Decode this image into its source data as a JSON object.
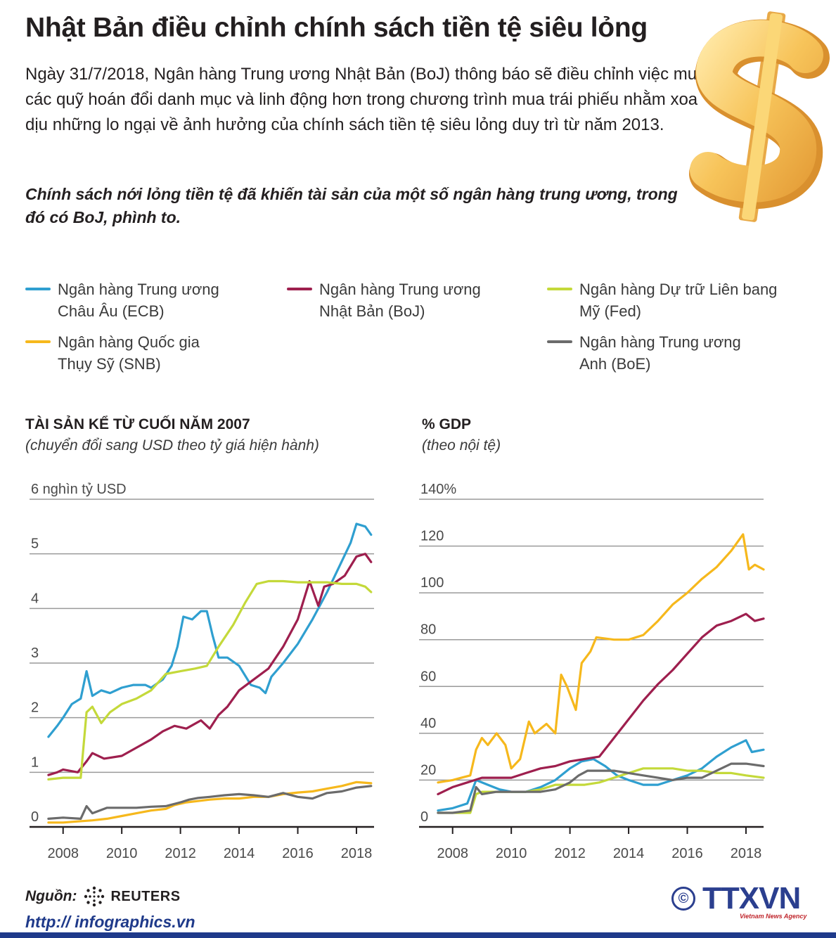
{
  "title": "Nhật Bản điều chỉnh chính sách tiền tệ siêu lỏng",
  "intro": "Ngày 31/7/2018, Ngân hàng Trung ương Nhật Bản (BoJ) thông báo sẽ điều chỉnh việc mua các quỹ hoán đổi danh mục và linh động hơn trong chương trình mua trái phiếu nhằm xoa dịu những lo ngại về ảnh hưởng của chính sách tiền tệ siêu lỏng duy trì từ năm 2013.",
  "lead": "Chính sách nới lỏng tiền tệ đã khiến tài sản của một số ngân hàng trung ương, trong đó có BoJ, phình to.",
  "legend": [
    {
      "line1": "Ngân hàng Trung ương",
      "line2": "Châu Âu (ECB)",
      "color": "#2f9fd0"
    },
    {
      "line1": "Ngân hàng Trung ương",
      "line2": "Nhật Bản (BoJ)",
      "color": "#9e1f4e"
    },
    {
      "line1": "Ngân hàng Dự trữ Liên bang",
      "line2": "Mỹ (Fed)",
      "color": "#c4d93a"
    },
    {
      "line1": "Ngân hàng Quốc gia",
      "line2": "Thụy Sỹ (SNB)",
      "color": "#f6b81c"
    },
    {
      "line1": "Ngân hàng Trung ương",
      "line2": "Anh (BoE)",
      "color": "#6b6b6b"
    }
  ],
  "panels": {
    "left": {
      "title": "TÀI SẢN KỂ TỪ CUỐI NĂM 2007",
      "subtitle": "(chuyển đổi sang USD theo tỷ giá hiện hành)"
    },
    "right": {
      "title": "% GDP",
      "subtitle": "(theo nội tệ)"
    }
  },
  "source": {
    "label": "Nguồn:",
    "name": "REUTERS"
  },
  "site": "http:// infographics.vn",
  "logo": {
    "text": "TTXVN",
    "sub": "Vietnam News Agency",
    "copyright": "©"
  },
  "icons": {
    "dollar": "dollar-sign-3d-icon",
    "reuters": "reuters-dots-icon",
    "copyright": "copyright-icon"
  },
  "chart_data": [
    {
      "type": "line",
      "title": "TÀI SẢN KỂ TỪ CUỐI NĂM 2007",
      "subtitle": "(chuyển đổi sang USD theo tỷ giá hiện hành)",
      "ylabel": "6 nghìn tỷ USD",
      "ylim": [
        0,
        6
      ],
      "xlim": [
        2007.0,
        2018.6
      ],
      "yticks": [
        {
          "v": 0,
          "label": "0"
        },
        {
          "v": 1,
          "label": "1"
        },
        {
          "v": 2,
          "label": "2"
        },
        {
          "v": 3,
          "label": "3"
        },
        {
          "v": 4,
          "label": "4"
        },
        {
          "v": 5,
          "label": "5"
        },
        {
          "v": 6,
          "label": "6 nghìn tỷ USD"
        }
      ],
      "xticks": [
        2008,
        2010,
        2012,
        2014,
        2016,
        2018
      ],
      "grid": true,
      "series": [
        {
          "name": "Ngân hàng Trung ương Châu Âu (ECB)",
          "color": "#2f9fd0",
          "x": [
            2007.5,
            2007.8,
            2008.0,
            2008.3,
            2008.6,
            2008.8,
            2009.0,
            2009.3,
            2009.6,
            2010.0,
            2010.4,
            2010.8,
            2011.0,
            2011.4,
            2011.7,
            2011.9,
            2012.1,
            2012.4,
            2012.7,
            2012.9,
            2013.1,
            2013.3,
            2013.6,
            2014.0,
            2014.4,
            2014.7,
            2014.9,
            2015.1,
            2015.5,
            2016.0,
            2016.5,
            2017.0,
            2017.4,
            2017.8,
            2018.0,
            2018.3,
            2018.5
          ],
          "y": [
            1.65,
            1.85,
            2.0,
            2.25,
            2.35,
            2.85,
            2.4,
            2.5,
            2.45,
            2.55,
            2.6,
            2.6,
            2.55,
            2.7,
            2.95,
            3.3,
            3.85,
            3.8,
            3.95,
            3.95,
            3.5,
            3.1,
            3.1,
            2.95,
            2.6,
            2.55,
            2.45,
            2.75,
            3.0,
            3.35,
            3.8,
            4.3,
            4.75,
            5.2,
            5.55,
            5.5,
            5.35
          ]
        },
        {
          "name": "Ngân hàng Trung ương Nhật Bản (BoJ)",
          "color": "#9e1f4e",
          "x": [
            2007.5,
            2007.8,
            2008.0,
            2008.5,
            2008.8,
            2009.0,
            2009.4,
            2010.0,
            2010.5,
            2011.0,
            2011.4,
            2011.8,
            2012.2,
            2012.7,
            2013.0,
            2013.3,
            2013.6,
            2014.0,
            2014.5,
            2015.0,
            2015.5,
            2016.0,
            2016.4,
            2016.7,
            2016.9,
            2017.2,
            2017.6,
            2018.0,
            2018.3,
            2018.5
          ],
          "y": [
            0.95,
            1.0,
            1.05,
            1.0,
            1.2,
            1.35,
            1.25,
            1.3,
            1.45,
            1.6,
            1.75,
            1.85,
            1.8,
            1.95,
            1.8,
            2.05,
            2.2,
            2.5,
            2.7,
            2.9,
            3.3,
            3.8,
            4.5,
            4.05,
            4.4,
            4.45,
            4.6,
            4.95,
            5.0,
            4.85
          ]
        },
        {
          "name": "Ngân hàng Dự trữ Liên bang Mỹ (Fed)",
          "color": "#c4d93a",
          "x": [
            2007.5,
            2008.0,
            2008.6,
            2008.8,
            2009.0,
            2009.3,
            2009.6,
            2010.0,
            2010.5,
            2011.0,
            2011.5,
            2012.0,
            2012.5,
            2012.9,
            2013.3,
            2013.8,
            2014.2,
            2014.6,
            2015.0,
            2015.5,
            2016.0,
            2016.5,
            2017.0,
            2017.5,
            2018.0,
            2018.3,
            2018.5
          ],
          "y": [
            0.87,
            0.9,
            0.9,
            2.1,
            2.2,
            1.9,
            2.1,
            2.25,
            2.35,
            2.5,
            2.8,
            2.85,
            2.9,
            2.95,
            3.3,
            3.7,
            4.1,
            4.45,
            4.5,
            4.5,
            4.48,
            4.48,
            4.48,
            4.45,
            4.45,
            4.4,
            4.3
          ]
        },
        {
          "name": "Ngân hàng Quốc gia Thụy Sỹ (SNB)",
          "color": "#f6b81c",
          "x": [
            2007.5,
            2008.0,
            2008.5,
            2009.0,
            2009.5,
            2010.0,
            2010.5,
            2011.0,
            2011.5,
            2011.8,
            2012.2,
            2012.7,
            2013.0,
            2013.5,
            2014.0,
            2014.5,
            2015.0,
            2015.5,
            2016.0,
            2016.5,
            2017.0,
            2017.5,
            2018.0,
            2018.5
          ],
          "y": [
            0.08,
            0.08,
            0.1,
            0.12,
            0.15,
            0.2,
            0.25,
            0.3,
            0.33,
            0.4,
            0.45,
            0.48,
            0.5,
            0.52,
            0.52,
            0.55,
            0.55,
            0.6,
            0.63,
            0.65,
            0.7,
            0.75,
            0.82,
            0.8
          ]
        },
        {
          "name": "Ngân hàng Trung ương Anh (BoE)",
          "color": "#6b6b6b",
          "x": [
            2007.5,
            2008.0,
            2008.6,
            2008.8,
            2009.0,
            2009.5,
            2010.0,
            2010.5,
            2011.0,
            2011.5,
            2012.0,
            2012.3,
            2012.6,
            2013.0,
            2013.5,
            2014.0,
            2014.5,
            2015.0,
            2015.5,
            2016.0,
            2016.5,
            2017.0,
            2017.5,
            2018.0,
            2018.5
          ],
          "y": [
            0.15,
            0.17,
            0.15,
            0.38,
            0.25,
            0.35,
            0.35,
            0.35,
            0.37,
            0.38,
            0.45,
            0.5,
            0.53,
            0.55,
            0.58,
            0.6,
            0.58,
            0.55,
            0.62,
            0.55,
            0.52,
            0.62,
            0.65,
            0.72,
            0.75
          ]
        }
      ]
    },
    {
      "type": "line",
      "title": "% GDP",
      "subtitle": "(theo nội tệ)",
      "ylabel": "140%",
      "ylim": [
        0,
        140
      ],
      "xlim": [
        2007.0,
        2018.6
      ],
      "yticks": [
        {
          "v": 0,
          "label": "0"
        },
        {
          "v": 20,
          "label": "20"
        },
        {
          "v": 40,
          "label": "40"
        },
        {
          "v": 60,
          "label": "60"
        },
        {
          "v": 80,
          "label": "80"
        },
        {
          "v": 100,
          "label": "100"
        },
        {
          "v": 120,
          "label": "120"
        },
        {
          "v": 140,
          "label": "140%"
        }
      ],
      "xticks": [
        2008,
        2010,
        2012,
        2014,
        2016,
        2018
      ],
      "grid": true,
      "series": [
        {
          "name": "Ngân hàng Trung ương Châu Âu (ECB)",
          "color": "#2f9fd0",
          "x": [
            2007.5,
            2008.0,
            2008.5,
            2008.8,
            2009.2,
            2009.6,
            2010.0,
            2010.5,
            2011.0,
            2011.5,
            2012.0,
            2012.4,
            2012.8,
            2013.2,
            2013.6,
            2014.0,
            2014.5,
            2015.0,
            2015.5,
            2016.0,
            2016.5,
            2017.0,
            2017.5,
            2018.0,
            2018.2,
            2018.6
          ],
          "y": [
            7,
            8,
            10,
            20,
            18,
            16,
            15,
            15,
            17,
            20,
            25,
            28,
            29,
            26,
            22,
            20,
            18,
            18,
            20,
            22,
            25,
            30,
            34,
            37,
            32,
            33
          ]
        },
        {
          "name": "Ngân hàng Trung ương Nhật Bản (BoJ)",
          "color": "#9e1f4e",
          "x": [
            2007.5,
            2008.0,
            2008.5,
            2009.0,
            2009.5,
            2010.0,
            2010.5,
            2011.0,
            2011.5,
            2012.0,
            2012.5,
            2013.0,
            2013.5,
            2014.0,
            2014.5,
            2015.0,
            2015.5,
            2016.0,
            2016.5,
            2017.0,
            2017.5,
            2018.0,
            2018.3,
            2018.6
          ],
          "y": [
            14,
            17,
            19,
            21,
            21,
            21,
            23,
            25,
            26,
            28,
            29,
            30,
            38,
            46,
            54,
            61,
            67,
            74,
            81,
            86,
            88,
            91,
            88,
            89
          ]
        },
        {
          "name": "Ngân hàng Dự trữ Liên bang Mỹ (Fed)",
          "color": "#c4d93a",
          "x": [
            2007.5,
            2008.0,
            2008.6,
            2008.8,
            2009.0,
            2009.5,
            2010.0,
            2010.5,
            2011.0,
            2011.5,
            2012.0,
            2012.5,
            2013.0,
            2013.5,
            2014.0,
            2014.5,
            2015.0,
            2015.5,
            2016.0,
            2016.5,
            2017.0,
            2017.5,
            2018.0,
            2018.6
          ],
          "y": [
            6,
            6,
            6,
            14,
            15,
            15,
            15,
            15,
            16,
            18,
            18,
            18,
            19,
            21,
            23,
            25,
            25,
            25,
            24,
            24,
            23,
            23,
            22,
            21
          ]
        },
        {
          "name": "Ngân hàng Quốc gia Thụy Sỹ (SNB)",
          "color": "#f6b81c",
          "x": [
            2007.5,
            2008.0,
            2008.3,
            2008.6,
            2008.8,
            2009.0,
            2009.2,
            2009.5,
            2009.8,
            2010.0,
            2010.3,
            2010.6,
            2010.8,
            2011.2,
            2011.5,
            2011.7,
            2011.9,
            2012.2,
            2012.4,
            2012.7,
            2012.9,
            2013.5,
            2014.0,
            2014.5,
            2015.0,
            2015.5,
            2016.0,
            2016.5,
            2017.0,
            2017.5,
            2017.9,
            2018.1,
            2018.3,
            2018.6
          ],
          "y": [
            19,
            20,
            21,
            22,
            33,
            38,
            35,
            40,
            35,
            25,
            29,
            45,
            40,
            44,
            40,
            65,
            60,
            50,
            70,
            75,
            81,
            80,
            80,
            82,
            88,
            95,
            100,
            106,
            111,
            118,
            125,
            110,
            112,
            110
          ]
        },
        {
          "name": "Ngân hàng Trung ương Anh (BoE)",
          "color": "#6b6b6b",
          "x": [
            2007.5,
            2008.0,
            2008.6,
            2008.8,
            2009.0,
            2009.5,
            2010.0,
            2010.5,
            2011.0,
            2011.5,
            2012.0,
            2012.3,
            2012.6,
            2013.0,
            2013.5,
            2014.0,
            2014.5,
            2015.0,
            2015.5,
            2016.0,
            2016.5,
            2017.0,
            2017.5,
            2018.0,
            2018.6
          ],
          "y": [
            6,
            6,
            7,
            17,
            14,
            15,
            15,
            15,
            15,
            16,
            19,
            22,
            24,
            24,
            24,
            23,
            22,
            21,
            20,
            21,
            21,
            24,
            27,
            27,
            26
          ]
        }
      ]
    }
  ]
}
